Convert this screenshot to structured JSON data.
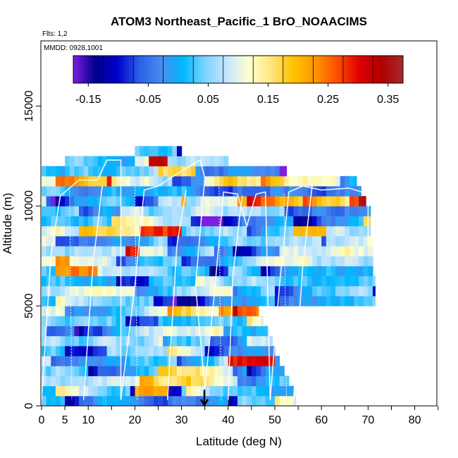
{
  "chart_data": {
    "type": "heatmap",
    "title": "ATOM3 Northeast_Pacific_1 BrO_NOAACIMS",
    "flights_label": "Flts: 1,2",
    "dates_label": "MMDD: 0928,1001",
    "xlabel": "Latitude (deg N)",
    "ylabel": "Altitude (m)",
    "xlim": [
      0,
      85
    ],
    "ylim": [
      0,
      18000
    ],
    "x_ticks": [
      0,
      5,
      10,
      20,
      30,
      40,
      50,
      60,
      70,
      80
    ],
    "x_tick_labels": [
      "0",
      "5",
      "10",
      "20",
      "30",
      "40",
      "50",
      "60",
      "70",
      "80"
    ],
    "x_minor_ticks": [
      0,
      5,
      10,
      15,
      20,
      25,
      30,
      35,
      40,
      45,
      50,
      55,
      60,
      65,
      70,
      75,
      80,
      85
    ],
    "y_ticks": [
      0,
      5000,
      10000,
      15000
    ],
    "y_tick_labels": [
      "0",
      "5000",
      "10000",
      "15000"
    ],
    "colorbar": {
      "min": -0.175,
      "max": 0.375,
      "ticks": [
        -0.15,
        -0.05,
        0.05,
        0.15,
        0.25,
        0.35
      ],
      "tick_labels": [
        "-0.15",
        "-0.05",
        "0.05",
        "0.15",
        "0.25",
        "0.35"
      ],
      "colors": [
        "#7d1fe0",
        "#00008b",
        "#0000cd",
        "#2a5fe8",
        "#4a8cf0",
        "#00b7ff",
        "#7fd4ff",
        "#c6e6ff",
        "#ffffcc",
        "#ffe680",
        "#ffc200",
        "#ff9600",
        "#ff4f00",
        "#e00000",
        "#b00000",
        "#a52a2a"
      ]
    },
    "altitude_bins_m": [
      0,
      500,
      1000,
      1500,
      2000,
      2500,
      3000,
      3500,
      4000,
      4500,
      5000,
      5500,
      6000,
      6500,
      7000,
      7500,
      8000,
      8500,
      9000,
      9500,
      10000,
      10500,
      11000,
      11500,
      12000,
      12500
    ],
    "bin_height_m": 500,
    "max_latitude_by_bin": [
      54.5,
      54,
      53,
      52,
      51,
      50,
      49.5,
      48.5,
      47.5,
      46.5,
      71.5,
      71.5,
      71.5,
      71,
      71,
      71,
      71,
      70.5,
      70.5,
      70.5,
      69.5,
      68.5,
      67.5,
      52.5,
      40,
      30
    ],
    "min_latitude_by_bin": [
      0,
      0,
      0,
      0,
      0,
      0,
      0,
      0,
      0,
      0,
      0,
      0,
      0,
      0,
      0,
      0,
      0,
      0,
      0,
      0,
      0,
      0,
      0,
      0,
      5,
      20
    ],
    "hotspots": [
      {
        "lat": [
          21,
          30
        ],
        "alt": [
          8200,
          9000
        ],
        "value": 0.28
      },
      {
        "lat": [
          18,
          21
        ],
        "alt": [
          7500,
          8000
        ],
        "value": 0.3
      },
      {
        "lat": [
          23,
          27
        ],
        "alt": [
          12000,
          12500
        ],
        "value": 0.33
      },
      {
        "lat": [
          40,
          50
        ],
        "alt": [
          2000,
          2500
        ],
        "value": 0.3
      },
      {
        "lat": [
          42,
          46
        ],
        "alt": [
          4500,
          5000
        ],
        "value": 0.27
      },
      {
        "lat": [
          20,
          27
        ],
        "alt": [
          500,
          1000
        ],
        "value": 0.22
      },
      {
        "lat": [
          25,
          33
        ],
        "alt": [
          11500,
          12000
        ],
        "value": 0.17
      },
      {
        "lat": [
          6,
          12
        ],
        "alt": [
          6500,
          7000
        ],
        "value": 0.24
      },
      {
        "lat": [
          3,
          6
        ],
        "alt": [
          6500,
          7500
        ],
        "value": 0.22
      }
    ],
    "flight_track_description": "white lines: repeated profile legs between surface and ~11 km",
    "profile_marker": {
      "lat": 34,
      "alt_top": 800,
      "label": "down arrow"
    }
  }
}
